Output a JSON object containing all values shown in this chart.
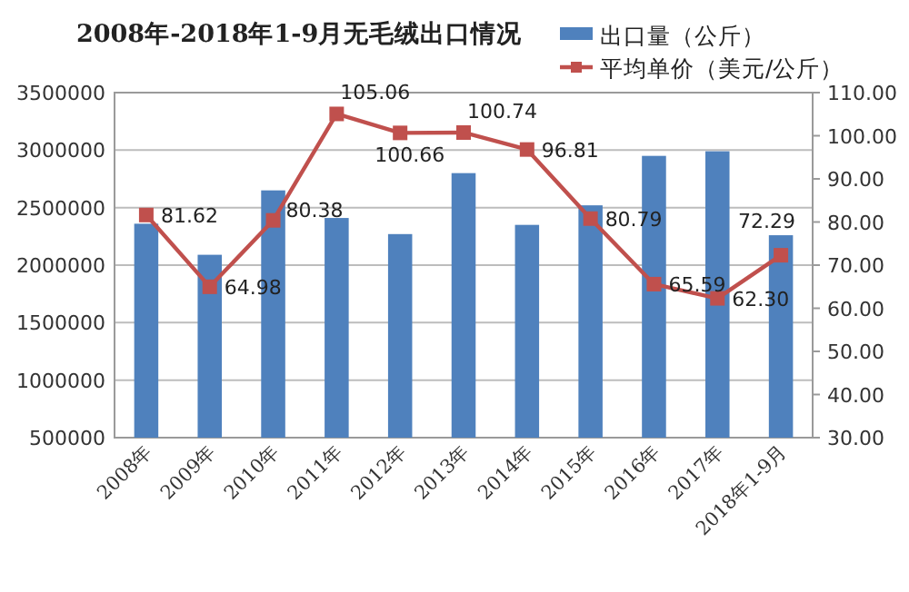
{
  "chart_data": {
    "type": "bar",
    "title": "2008年-2018年1-9月无毛绒出口情况",
    "categories": [
      "2008年",
      "2009年",
      "2010年",
      "2011年",
      "2012年",
      "2013年",
      "2014年",
      "2015年",
      "2016年",
      "2017年",
      "2018年1-9月"
    ],
    "series": [
      {
        "name": "出口量（公斤）",
        "color": "#4f81bd",
        "values": [
          2360000,
          2090000,
          2650000,
          2410000,
          2270000,
          2800000,
          2350000,
          2520000,
          2950000,
          2990000,
          2260000
        ]
      },
      {
        "name": "平均单价（美元/公斤）",
        "type": "line",
        "axis": "y2",
        "color": "#c0504d",
        "marker": "square",
        "values": [
          81.62,
          64.98,
          80.38,
          105.06,
          100.66,
          100.74,
          96.81,
          80.79,
          65.59,
          62.3,
          72.29
        ],
        "value_labels": [
          "81.62",
          "64.98",
          "80.38",
          "105.06",
          "100.66",
          "100.74",
          "96.81",
          "80.79",
          "65.59",
          "62.30",
          "72.29"
        ]
      }
    ],
    "ylim": [
      500000,
      3500000
    ],
    "yticks": [
      500000,
      1000000,
      1500000,
      2000000,
      2500000,
      3000000,
      3500000
    ],
    "y2lim": [
      30,
      110
    ],
    "y2ticks": [
      {
        "value": 30,
        "label": "30.00"
      },
      {
        "value": 40,
        "label": "40.00"
      },
      {
        "value": 50,
        "label": "50.00"
      },
      {
        "value": 60,
        "label": "60.00"
      },
      {
        "value": 70,
        "label": "70.00"
      },
      {
        "value": 80,
        "label": "80.00"
      },
      {
        "value": 90,
        "label": "90.00"
      },
      {
        "value": 100,
        "label": "100.00"
      },
      {
        "value": 110,
        "label": "110.00"
      }
    ],
    "grid": "y",
    "legend": "top right"
  }
}
